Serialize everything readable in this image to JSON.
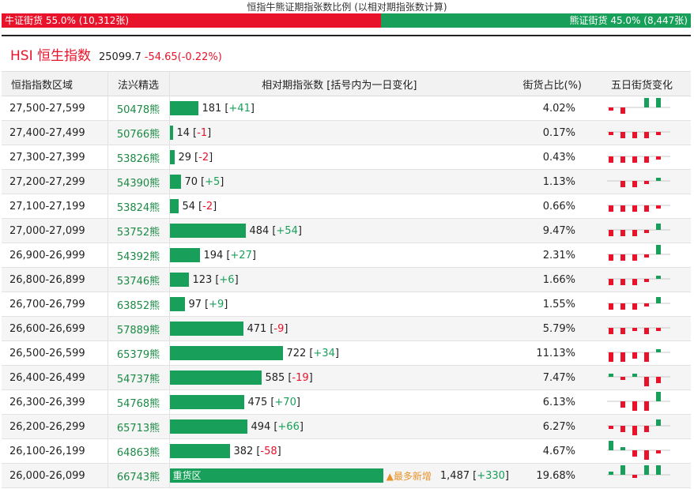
{
  "ratio": {
    "title": "恒指牛熊证期指张数比例 (以相对期指张数计算)",
    "bull_label": "牛证街货 55.0% (10,312张)",
    "bear_label": "熊证街货 45.0% (8,447张)",
    "bull_pct": 55.0,
    "bear_pct": 45.0,
    "bull_color": "#e8132a",
    "bear_color": "#18a05a"
  },
  "index": {
    "name": "HSI 恒生指数",
    "value": "25099.7",
    "change": "-54.65(-0.22%)"
  },
  "table": {
    "headers": {
      "range": "恒指指数区域",
      "code": "法兴精选",
      "bar": "相对期指张数 [括号内为一日变化]",
      "pct": "街货占比(%)",
      "spark": "五日街货变化"
    },
    "max_contracts": 1487,
    "rows": [
      {
        "range": "27,500-27,599",
        "code": "50478熊",
        "contracts": 181,
        "contracts_text": "181",
        "change": "+41",
        "pct": "4.02%",
        "spark": [
          -1,
          -2,
          0,
          3,
          3
        ]
      },
      {
        "range": "27,400-27,499",
        "code": "50766熊",
        "contracts": 14,
        "contracts_text": "14",
        "change": "-1",
        "pct": "0.17%",
        "spark": [
          -1,
          -2,
          -2,
          -2,
          -1
        ]
      },
      {
        "range": "27,300-27,399",
        "code": "53826熊",
        "contracts": 29,
        "contracts_text": "29",
        "change": "-2",
        "pct": "0.43%",
        "spark": [
          -2,
          -2,
          -2,
          -2,
          -1
        ]
      },
      {
        "range": "27,200-27,299",
        "code": "54390熊",
        "contracts": 70,
        "contracts_text": "70",
        "change": "+5",
        "pct": "1.13%",
        "spark": [
          0,
          -2,
          -2,
          -1,
          1
        ]
      },
      {
        "range": "27,100-27,199",
        "code": "53824熊",
        "contracts": 54,
        "contracts_text": "54",
        "change": "-2",
        "pct": "0.66%",
        "spark": [
          -2,
          -2,
          -2,
          -2,
          -1
        ]
      },
      {
        "range": "27,000-27,099",
        "code": "53752熊",
        "contracts": 484,
        "contracts_text": "484",
        "change": "+54",
        "pct": "9.47%",
        "spark": [
          -2,
          -2,
          -2,
          -1,
          2
        ]
      },
      {
        "range": "26,900-26,999",
        "code": "54392熊",
        "contracts": 194,
        "contracts_text": "194",
        "change": "+27",
        "pct": "2.31%",
        "spark": [
          -2,
          -2,
          -2,
          -1,
          3
        ]
      },
      {
        "range": "26,800-26,899",
        "code": "53746熊",
        "contracts": 123,
        "contracts_text": "123",
        "change": "+6",
        "pct": "1.66%",
        "spark": [
          -2,
          -2,
          -2,
          -1,
          1
        ]
      },
      {
        "range": "26,700-26,799",
        "code": "63852熊",
        "contracts": 97,
        "contracts_text": "97",
        "change": "+9",
        "pct": "1.55%",
        "spark": [
          -2,
          -2,
          -2,
          -1,
          2
        ]
      },
      {
        "range": "26,600-26,699",
        "code": "57889熊",
        "contracts": 471,
        "contracts_text": "471",
        "change": "-9",
        "pct": "5.79%",
        "spark": [
          -2,
          -2,
          -1,
          -2,
          -1
        ]
      },
      {
        "range": "26,500-26,599",
        "code": "65379熊",
        "contracts": 722,
        "contracts_text": "722",
        "change": "+34",
        "pct": "11.13%",
        "spark": [
          -3,
          -3,
          -2,
          -3,
          1
        ]
      },
      {
        "range": "26,400-26,499",
        "code": "54737熊",
        "contracts": 585,
        "contracts_text": "585",
        "change": "-19",
        "pct": "7.47%",
        "spark": [
          1,
          -1,
          1,
          -3,
          -2
        ]
      },
      {
        "range": "26,300-26,399",
        "code": "54768熊",
        "contracts": 475,
        "contracts_text": "475",
        "change": "+70",
        "pct": "6.13%",
        "spark": [
          0,
          -2,
          -3,
          -3,
          3
        ]
      },
      {
        "range": "26,200-26,299",
        "code": "65713熊",
        "contracts": 494,
        "contracts_text": "494",
        "change": "+66",
        "pct": "6.27%",
        "spark": [
          -1,
          -2,
          -3,
          -2,
          2
        ]
      },
      {
        "range": "26,100-26,199",
        "code": "64863熊",
        "contracts": 382,
        "contracts_text": "382",
        "change": "-58",
        "pct": "4.67%",
        "spark": [
          3,
          1,
          -2,
          -3,
          -1
        ]
      },
      {
        "range": "26,000-26,099",
        "code": "66743熊",
        "contracts": 1487,
        "contracts_text": "1,487",
        "change": "+330",
        "pct": "19.68%",
        "spark": [
          1,
          3,
          -1,
          3,
          3
        ],
        "bar_label": "重货区",
        "tag": "▲最多新增"
      }
    ]
  }
}
